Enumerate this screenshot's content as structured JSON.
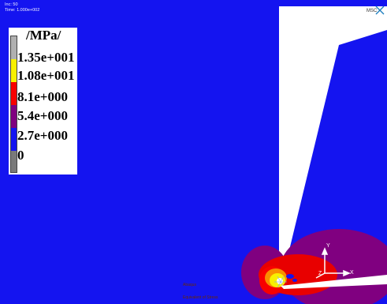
{
  "header": {
    "inc_line": "Inc:   50",
    "time_line": "Time:  1.000e+002"
  },
  "legend": {
    "title": "/MPa/",
    "labels": [
      "1.35e+001",
      "1.08e+001",
      "8.1e+000",
      "5.4e+000",
      "2.7e+000",
      "0"
    ],
    "band_colors": [
      "#ffffff",
      "#f8f000",
      "#f80000",
      "#800080",
      "#1414f0",
      "#7a7a7a"
    ]
  },
  "logo": {
    "text": "MSC"
  },
  "footer": {
    "job_label": "Abaqus",
    "result_label": "Equivalent of Stress"
  },
  "triad": {
    "x": "X",
    "y": "Y",
    "z": "Z"
  },
  "colors": {
    "background": "#1414f0",
    "crack_gap": "#ffffff"
  }
}
